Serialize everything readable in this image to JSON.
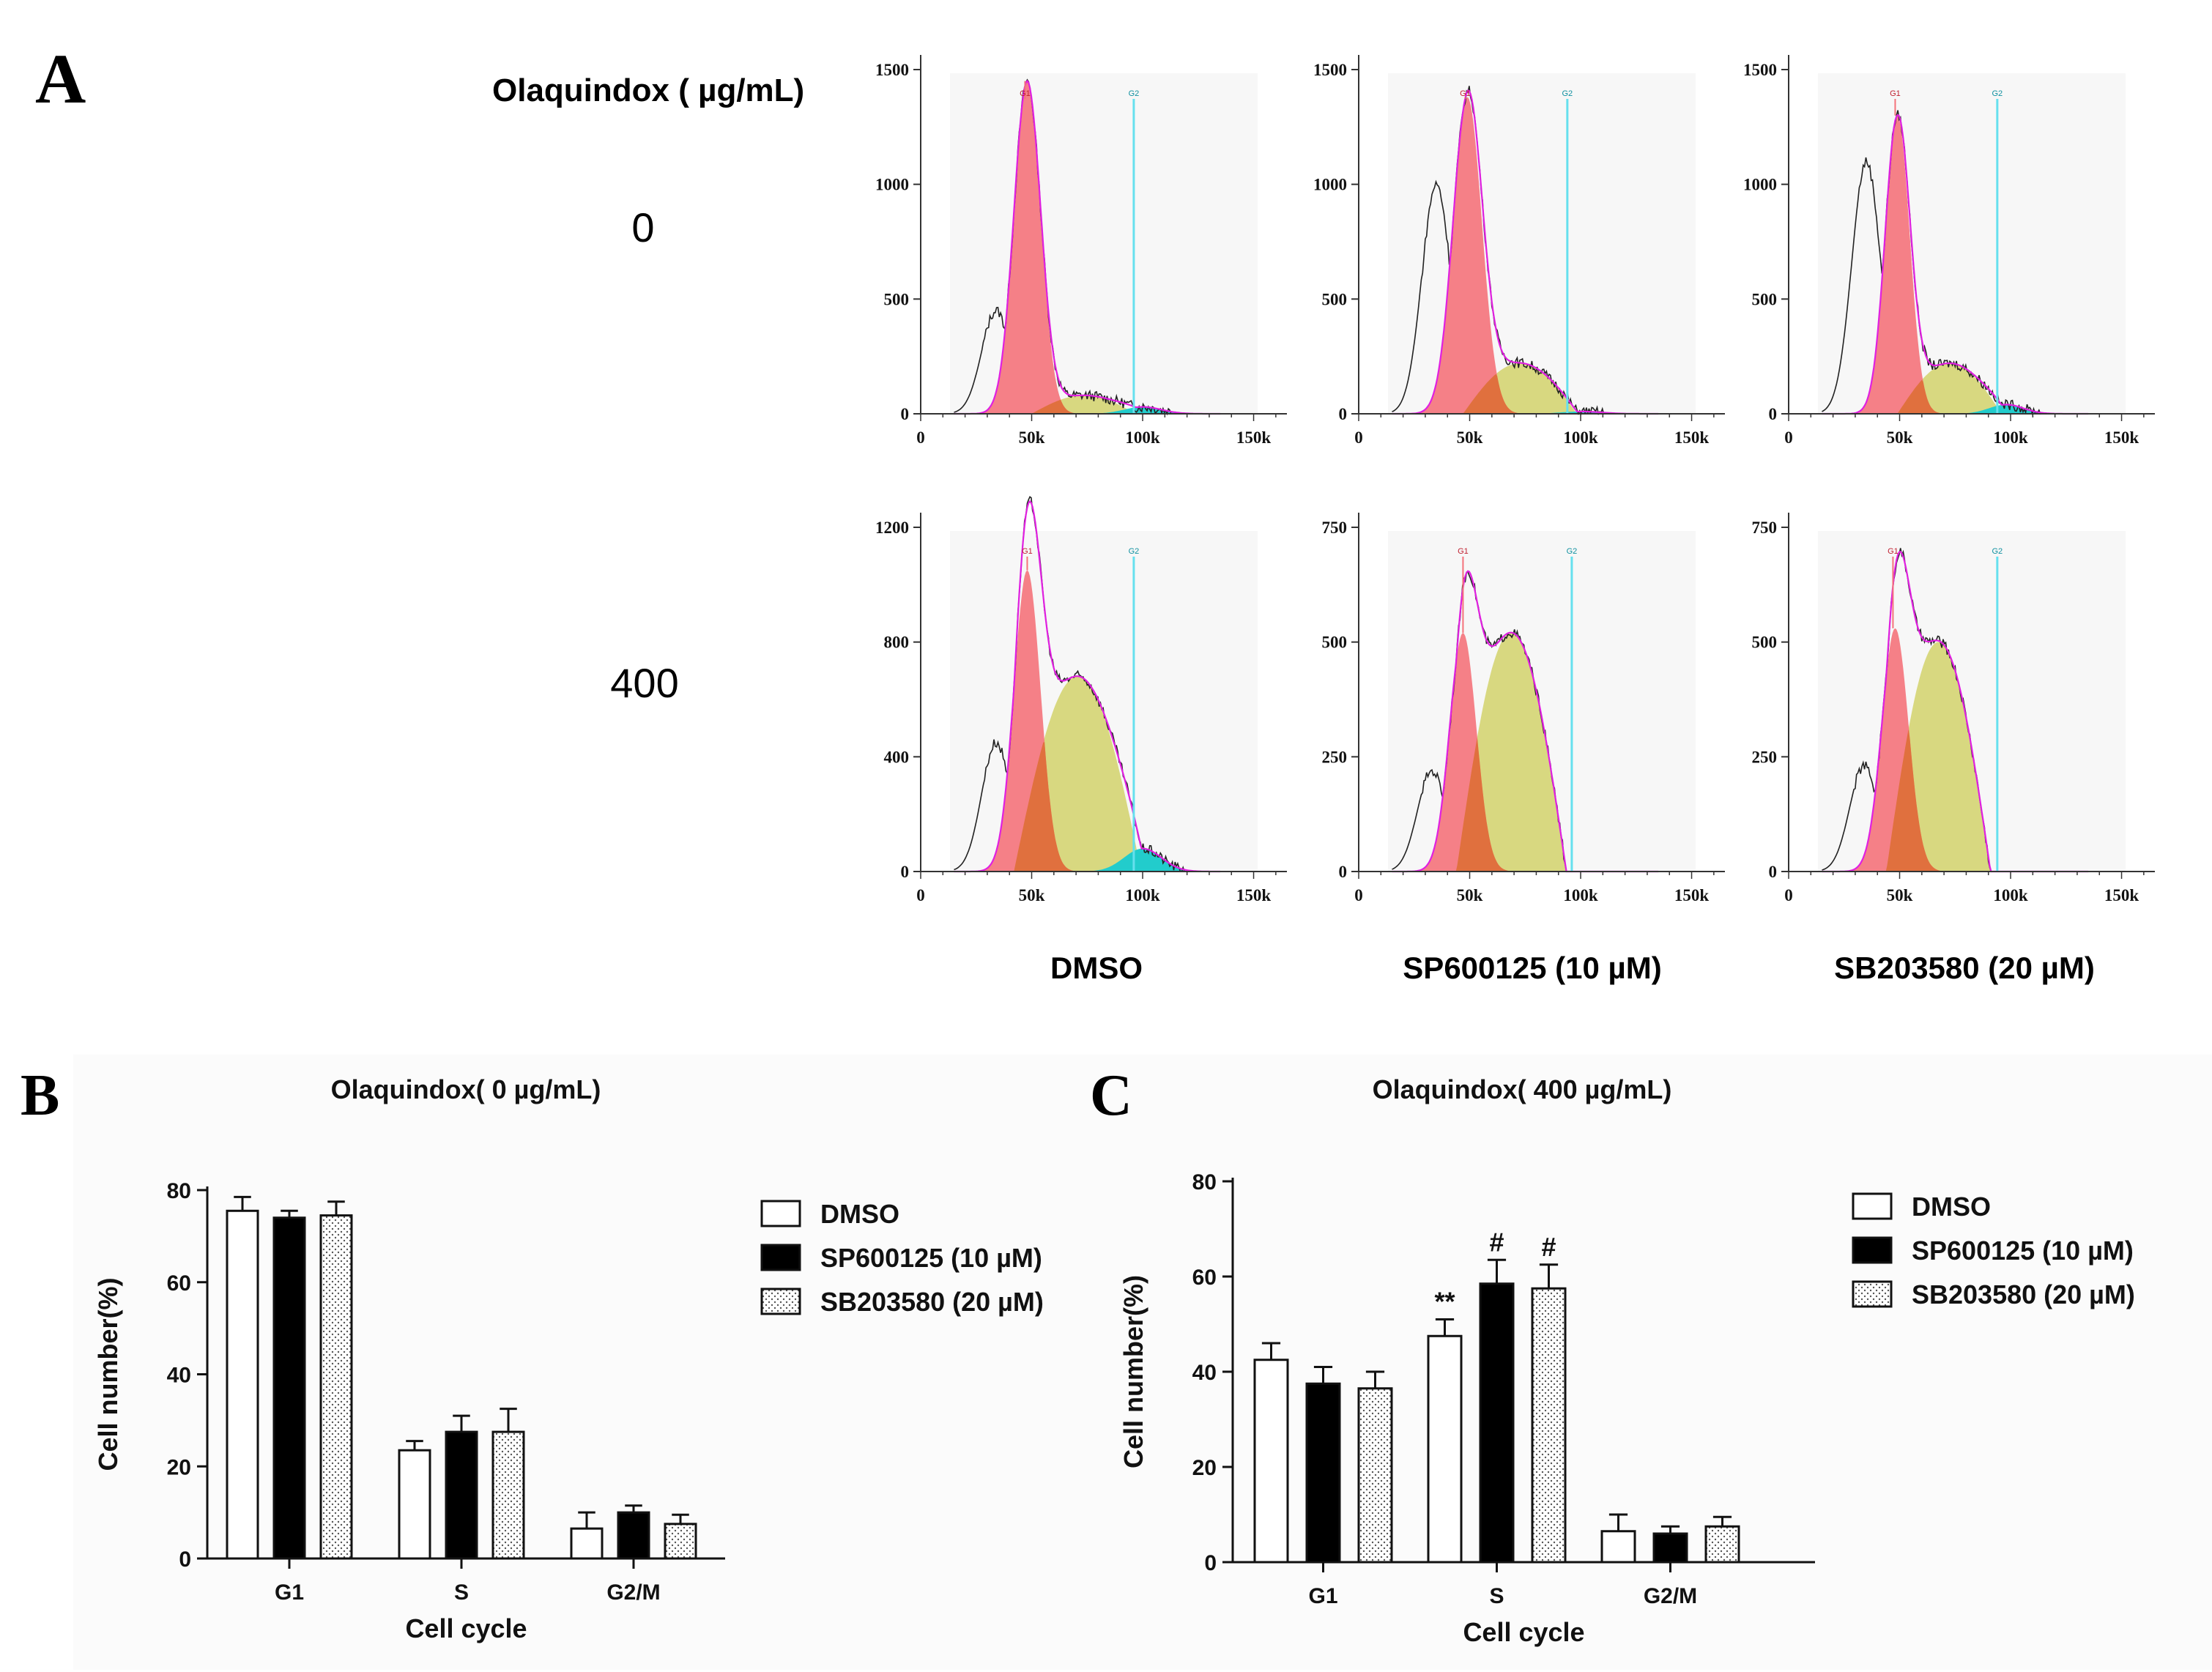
{
  "panels": {
    "A": "A",
    "B": "B",
    "C": "C"
  },
  "histograms": {
    "concentration_header": "Olaquindox ( µg/mL)",
    "row_labels": [
      "0",
      "400"
    ],
    "column_labels": [
      "DMSO",
      "SP600125 (10 µM)",
      "SB203580 (20 µM)"
    ],
    "gate_labels": [
      "G1",
      "G2"
    ],
    "x_tick_labels": [
      "0",
      "50k",
      "100k",
      "150k"
    ],
    "x_ticks": [
      0,
      50000,
      100000,
      150000
    ],
    "colors": {
      "g1": "#f4727a",
      "s": "#d8d880",
      "g2": "#22cccc",
      "overlap": "#e0703e",
      "fit_line": "#e020e0",
      "gate_line": "#66e0ee",
      "raw_line": "#222222",
      "plot_bg": "#f7f7f7"
    },
    "plots": [
      {
        "row": 0,
        "col": 0,
        "ymax": 1500,
        "yticks": [
          0,
          500,
          1000,
          1500
        ],
        "g1_mean": 48000,
        "g1_sd": 6000,
        "g1_peak": 1450,
        "s_peak": 80,
        "s_start": 58000,
        "s_end": 98000,
        "g2_mean": 100000,
        "g2_peak": 30,
        "shoulder": 450,
        "gate_g1": 47000,
        "gate_g2": 96000
      },
      {
        "row": 0,
        "col": 1,
        "ymax": 1500,
        "yticks": [
          0,
          500,
          1000,
          1500
        ],
        "g1_mean": 49000,
        "g1_sd": 6500,
        "g1_peak": 1380,
        "s_peak": 220,
        "s_start": 55000,
        "s_end": 100000,
        "g2_mean": 100000,
        "g2_peak": 10,
        "shoulder": 1000,
        "gate_g1": 48000,
        "gate_g2": 94000
      },
      {
        "row": 0,
        "col": 2,
        "ymax": 1500,
        "yticks": [
          0,
          500,
          1000,
          1500
        ],
        "g1_mean": 49000,
        "g1_sd": 5500,
        "g1_peak": 1300,
        "s_peak": 220,
        "s_start": 57000,
        "s_end": 97000,
        "g2_mean": 98000,
        "g2_peak": 40,
        "shoulder": 1100,
        "gate_g1": 48000,
        "gate_g2": 94000
      },
      {
        "row": 1,
        "col": 0,
        "ymax": 1200,
        "yticks": [
          0,
          400,
          800,
          1200
        ],
        "g1_mean": 48000,
        "g1_sd": 6000,
        "g1_peak": 1050,
        "s_peak": 680,
        "s_start": 50000,
        "s_end": 102000,
        "g2_mean": 100000,
        "g2_peak": 80,
        "shoulder": 450,
        "gate_g1": 48000,
        "gate_g2": 96000
      },
      {
        "row": 1,
        "col": 1,
        "ymax": 750,
        "yticks": [
          0,
          250,
          500,
          750
        ],
        "g1_mean": 47000,
        "g1_sd": 6000,
        "g1_peak": 520,
        "s_peak": 520,
        "s_start": 52000,
        "s_end": 95000,
        "g2_mean": 100000,
        "g2_peak": 0,
        "shoulder": 220,
        "gate_g1": 47000,
        "gate_g2": 96000
      },
      {
        "row": 1,
        "col": 2,
        "ymax": 750,
        "yticks": [
          0,
          250,
          500,
          750
        ],
        "g1_mean": 48000,
        "g1_sd": 6000,
        "g1_peak": 530,
        "s_peak": 500,
        "s_start": 52000,
        "s_end": 92000,
        "g2_mean": 98000,
        "g2_peak": 0,
        "shoulder": 230,
        "gate_g1": 47000,
        "gate_g2": 94000
      }
    ]
  },
  "chart_data": [
    {
      "type": "bar",
      "title": "Olaquindox( 0 µg/mL)",
      "xlabel": "Cell cycle",
      "ylabel": "Cell number(%)",
      "ylim": [
        0,
        80
      ],
      "yticks": [
        0,
        20,
        40,
        60,
        80
      ],
      "categories": [
        "G1",
        "S",
        "G2/M"
      ],
      "series": [
        {
          "name": "DMSO",
          "values": [
            75.5,
            23.5,
            6.5
          ],
          "errors": [
            3.0,
            2.0,
            3.5
          ]
        },
        {
          "name": "SP600125 (10 µM)",
          "values": [
            74,
            27.5,
            10
          ],
          "errors": [
            1.5,
            3.5,
            1.5
          ]
        },
        {
          "name": "SB203580 (20 µM)",
          "values": [
            74.5,
            27.5,
            7.5
          ],
          "errors": [
            3.0,
            5.0,
            2.0
          ]
        }
      ],
      "annotations": [],
      "legend_position": "right"
    },
    {
      "type": "bar",
      "title": "Olaquindox( 400 µg/mL)",
      "xlabel": "Cell cycle",
      "ylabel": "Cell number(%)",
      "ylim": [
        0,
        80
      ],
      "yticks": [
        0,
        20,
        40,
        60,
        80
      ],
      "categories": [
        "G1",
        "S",
        "G2/M"
      ],
      "series": [
        {
          "name": "DMSO",
          "values": [
            42.5,
            47.5,
            6.5
          ],
          "errors": [
            3.5,
            3.5,
            3.5
          ]
        },
        {
          "name": "SP600125 (10 µM)",
          "values": [
            37.5,
            58.5,
            6
          ],
          "errors": [
            3.5,
            5.0,
            1.5
          ]
        },
        {
          "name": "SB203580 (20 µM)",
          "values": [
            36.5,
            57.5,
            7.5
          ],
          "errors": [
            3.5,
            5.0,
            2.0
          ]
        }
      ],
      "annotations": [
        {
          "category": "S",
          "series": 0,
          "text": "**"
        },
        {
          "category": "S",
          "series": 1,
          "text": "#"
        },
        {
          "category": "S",
          "series": 2,
          "text": "#"
        }
      ],
      "legend_position": "right"
    }
  ]
}
